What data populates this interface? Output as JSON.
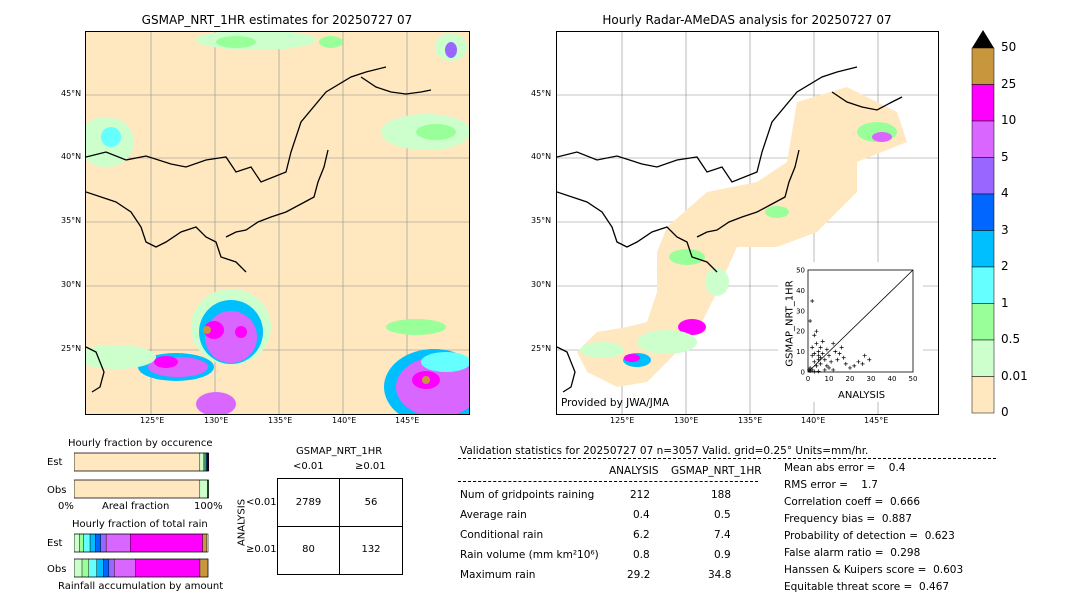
{
  "left_map": {
    "title": "GSMAP_NRT_1HR estimates for 20250727 07",
    "lat_ticks": [
      "45°N",
      "40°N",
      "35°N",
      "30°N",
      "25°N"
    ],
    "lon_ticks": [
      "125°E",
      "130°E",
      "135°E",
      "140°E",
      "145°E"
    ]
  },
  "right_map": {
    "title": "Hourly Radar-AMeDAS analysis for 20250727 07",
    "lat_ticks": [
      "45°N",
      "40°N",
      "35°N",
      "30°N",
      "25°N"
    ],
    "lon_ticks": [
      "125°E",
      "130°E",
      "135°E",
      "140°E",
      "145°E"
    ],
    "credit": "Provided by JWA/JMA"
  },
  "colorbar": {
    "labels": [
      "50",
      "25",
      "10",
      "5",
      "4",
      "3",
      "2",
      "1",
      "0.5",
      "0.01",
      "0"
    ],
    "colors": [
      "#c8963c",
      "#ff00ff",
      "#d966ff",
      "#9966ff",
      "#0066ff",
      "#00bfff",
      "#66ffff",
      "#99ff99",
      "#ccffcc",
      "#ffe8c0"
    ]
  },
  "scatter": {
    "xlabel": "ANALYSIS",
    "ylabel": "GSMAP_NRT_1HR",
    "ticks": [
      "0",
      "10",
      "20",
      "30",
      "40",
      "50"
    ]
  },
  "occurrence": {
    "title": "Hourly fraction by occurence",
    "row_labels": [
      "Est",
      "Obs"
    ],
    "axis_left": "0%",
    "axis_mid": "Areal fraction",
    "axis_right": "100%"
  },
  "total_rain": {
    "title": "Hourly fraction of total rain",
    "row_labels": [
      "Est",
      "Obs"
    ],
    "footer": "Rainfall accumulation by amount"
  },
  "contingency": {
    "title": "GSMAP_NRT_1HR",
    "col_labels": [
      "<0.01",
      "≥0.01"
    ],
    "row_axis": "ANALYSIS",
    "row_labels": [
      "<0.01",
      "≥0.01"
    ],
    "cells": [
      [
        "2789",
        "56"
      ],
      [
        "80",
        "132"
      ]
    ]
  },
  "validation": {
    "header": "Validation statistics for 20250727 07  n=3057 Valid. grid=0.25° Units=mm/hr.",
    "col_analysis": "ANALYSIS",
    "col_gsmap": "GSMAP_NRT_1HR",
    "rows": [
      {
        "label": "Num of gridpoints raining",
        "analysis": "212",
        "gsmap": "188"
      },
      {
        "label": "Average rain",
        "analysis": "0.4",
        "gsmap": "0.5"
      },
      {
        "label": "Conditional rain",
        "analysis": "6.2",
        "gsmap": "7.4"
      },
      {
        "label": "Rain volume (mm km²10⁶)",
        "analysis": "0.8",
        "gsmap": "0.9"
      },
      {
        "label": "Maximum rain",
        "analysis": "29.2",
        "gsmap": "34.8"
      }
    ],
    "scores": [
      "Mean abs error =    0.4",
      "RMS error =    1.7",
      "Correlation coeff =  0.666",
      "Frequency bias =  0.887",
      "Probability of detection =  0.623",
      "False alarm ratio =  0.298",
      "Hanssen & Kuipers score =  0.603",
      "Equitable threat score =  0.467"
    ]
  },
  "chart_data": [
    {
      "type": "heatmap",
      "title": "GSMAP_NRT_1HR estimates for 20250727 07",
      "xlabel": "",
      "ylabel": "",
      "x_ticks": [
        "125°E",
        "130°E",
        "135°E",
        "140°E",
        "145°E"
      ],
      "y_ticks": [
        "45°N",
        "40°N",
        "35°N",
        "30°N",
        "25°N"
      ],
      "color_levels": [
        "0",
        "0.01",
        "0.5",
        "1",
        "2",
        "3",
        "4",
        "5",
        "10",
        "25",
        "50"
      ]
    },
    {
      "type": "heatmap",
      "title": "Hourly Radar-AMeDAS analysis for 20250727 07",
      "xlabel": "",
      "ylabel": "",
      "x_ticks": [
        "125°E",
        "130°E",
        "135°E",
        "140°E",
        "145°E"
      ],
      "y_ticks": [
        "45°N",
        "40°N",
        "35°N",
        "30°N",
        "25°N"
      ],
      "color_levels": [
        "0",
        "0.01",
        "0.5",
        "1",
        "2",
        "3",
        "4",
        "5",
        "10",
        "25",
        "50"
      ]
    },
    {
      "type": "scatter",
      "xlabel": "ANALYSIS",
      "ylabel": "GSMAP_NRT_1HR",
      "xlim": [
        0,
        50
      ],
      "ylim": [
        0,
        50
      ],
      "points": [
        [
          1,
          2
        ],
        [
          2,
          1
        ],
        [
          3,
          5
        ],
        [
          4,
          3
        ],
        [
          5,
          8
        ],
        [
          6,
          4
        ],
        [
          2,
          12
        ],
        [
          3,
          18
        ],
        [
          1,
          25
        ],
        [
          2,
          34.8
        ],
        [
          4,
          14
        ],
        [
          5,
          10
        ],
        [
          6,
          12
        ],
        [
          7,
          9
        ],
        [
          8,
          6
        ],
        [
          9,
          11
        ],
        [
          10,
          8
        ],
        [
          12,
          14
        ],
        [
          13,
          10
        ],
        [
          14,
          6
        ],
        [
          15,
          9
        ],
        [
          16,
          12
        ],
        [
          17,
          7
        ],
        [
          18,
          4
        ],
        [
          20,
          2
        ],
        [
          22,
          3
        ],
        [
          24,
          5
        ],
        [
          26,
          4
        ],
        [
          27,
          8
        ],
        [
          29.2,
          6
        ],
        [
          1,
          0.5
        ],
        [
          0.5,
          1
        ],
        [
          3,
          0.2
        ],
        [
          5,
          0.3
        ],
        [
          8,
          1
        ],
        [
          10,
          2
        ],
        [
          11,
          5
        ],
        [
          6,
          7
        ],
        [
          7,
          15
        ],
        [
          4,
          20
        ],
        [
          2,
          8
        ],
        [
          3,
          9
        ],
        [
          5,
          6
        ],
        [
          9,
          3
        ],
        [
          12,
          1
        ]
      ]
    },
    {
      "type": "bar",
      "title": "Hourly fraction by occurence",
      "categories": [
        "Est",
        "Obs"
      ],
      "series": [
        {
          "values": [
            0.939,
            0.939
          ]
        },
        {
          "values": [
            0.03,
            0.055
          ]
        },
        {
          "values": [
            0.008,
            0.012
          ]
        },
        {
          "values": [
            0.008,
            0.009
          ]
        },
        {
          "values": [
            0.005,
            0.006
          ]
        },
        {
          "values": [
            0.004,
            0.004
          ]
        },
        {
          "values": [
            0.003,
            0.003
          ]
        },
        {
          "values": [
            0.003,
            0.004
          ]
        },
        {
          "values": [
            0.005,
            0.004
          ]
        },
        {
          "values": [
            0.002,
            0.0
          ]
        }
      ]
    },
    {
      "type": "bar",
      "title": "Hourly fraction of total rain",
      "categories": [
        "Est",
        "Obs"
      ],
      "series": [
        {
          "values": [
            0.0,
            0.0
          ]
        },
        {
          "values": [
            0.04,
            0.06
          ]
        },
        {
          "values": [
            0.03,
            0.05
          ]
        },
        {
          "values": [
            0.05,
            0.06
          ]
        },
        {
          "values": [
            0.04,
            0.05
          ]
        },
        {
          "values": [
            0.04,
            0.04
          ]
        },
        {
          "values": [
            0.04,
            0.04
          ]
        },
        {
          "values": [
            0.18,
            0.16
          ]
        },
        {
          "values": [
            0.54,
            0.48
          ]
        },
        {
          "values": [
            0.03,
            0.06
          ]
        }
      ]
    }
  ]
}
